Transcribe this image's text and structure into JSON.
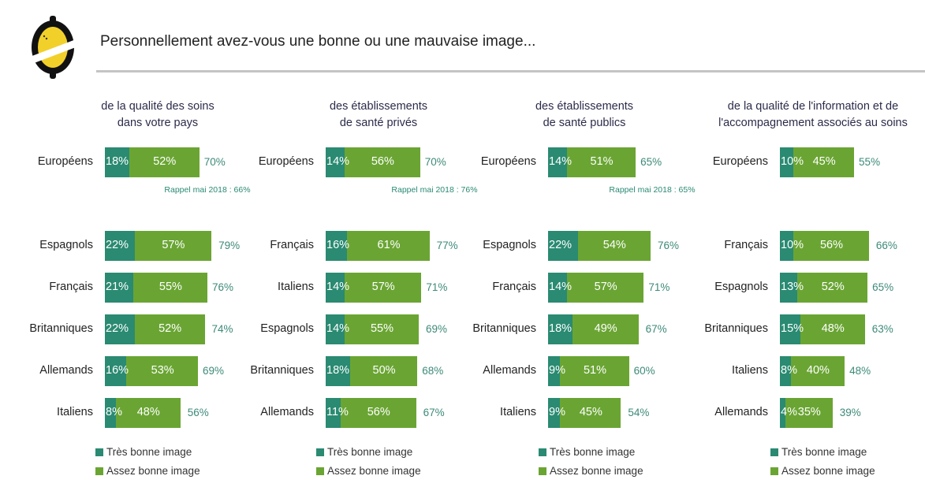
{
  "header": {
    "title": "Personnellement avez-vous une bonne ou une mauvaise image...",
    "logo": "yellow-oval-logo"
  },
  "colors": {
    "tres": "#2a8a72",
    "assez": "#6aa533",
    "total": "#3d8a78"
  },
  "legend": {
    "tres": "Très bonne image",
    "assez": "Assez bonne image"
  },
  "chart_data": [
    {
      "type": "bar",
      "stacked": true,
      "orientation": "horizontal",
      "title": "de la qualité des soins\ndans votre pays",
      "categories": [
        "Européens",
        "Espagnols",
        "Français",
        "Britanniques",
        "Allemands",
        "Italiens"
      ],
      "series": [
        {
          "name": "Très bonne image",
          "values": [
            18,
            22,
            21,
            22,
            16,
            8
          ]
        },
        {
          "name": "Assez bonne image",
          "values": [
            52,
            57,
            55,
            52,
            53,
            48
          ]
        }
      ],
      "totals": [
        70,
        79,
        76,
        74,
        69,
        56
      ],
      "annotation": "Rappel mai 2018 : 66%"
    },
    {
      "type": "bar",
      "stacked": true,
      "orientation": "horizontal",
      "title": "des établissements\nde santé privés",
      "categories": [
        "Européens",
        "Français",
        "Italiens",
        "Espagnols",
        "Britanniques",
        "Allemands"
      ],
      "series": [
        {
          "name": "Très bonne image",
          "values": [
            14,
            16,
            14,
            14,
            18,
            11
          ]
        },
        {
          "name": "Assez bonne image",
          "values": [
            56,
            61,
            57,
            55,
            50,
            56
          ]
        }
      ],
      "totals": [
        70,
        77,
        71,
        69,
        68,
        67
      ],
      "annotation": "Rappel mai 2018 : 76%"
    },
    {
      "type": "bar",
      "stacked": true,
      "orientation": "horizontal",
      "title": "des établissements\nde santé publics",
      "categories": [
        "Européens",
        "Espagnols",
        "Français",
        "Britanniques",
        "Allemands",
        "Italiens"
      ],
      "series": [
        {
          "name": "Très bonne image",
          "values": [
            14,
            22,
            14,
            18,
            9,
            9
          ]
        },
        {
          "name": "Assez bonne image",
          "values": [
            51,
            54,
            57,
            49,
            51,
            45
          ]
        }
      ],
      "totals": [
        65,
        76,
        71,
        67,
        60,
        54
      ],
      "annotation": "Rappel mai 2018 : 65%"
    },
    {
      "type": "bar",
      "stacked": true,
      "orientation": "horizontal",
      "title": "de la qualité de l'information et de\nl'accompagnement associés au soins",
      "categories": [
        "Européens",
        "Français",
        "Espagnols",
        "Britanniques",
        "Italiens",
        "Allemands"
      ],
      "series": [
        {
          "name": "Très bonne image",
          "values": [
            10,
            10,
            13,
            15,
            8,
            4
          ]
        },
        {
          "name": "Assez bonne image",
          "values": [
            45,
            56,
            52,
            48,
            40,
            35
          ]
        }
      ],
      "totals": [
        55,
        66,
        65,
        63,
        48,
        39
      ],
      "annotation": ""
    }
  ]
}
